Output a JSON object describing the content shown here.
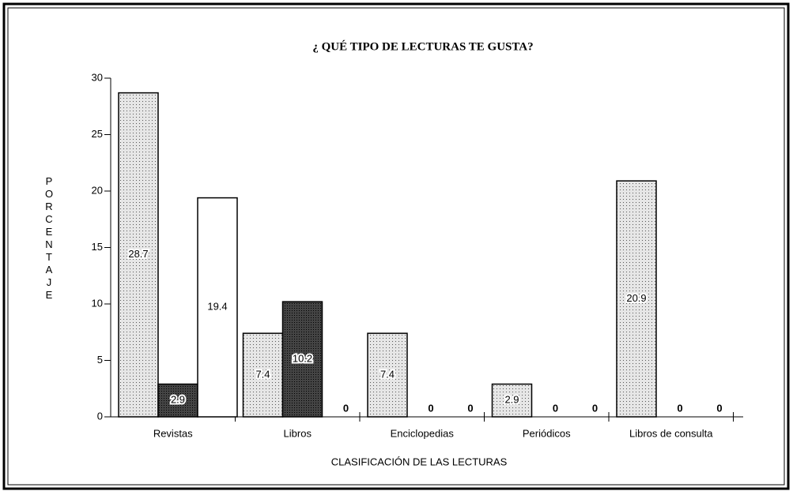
{
  "chart_data": {
    "type": "bar",
    "title": "¿ QUÉ TIPO DE LECTURAS TE GUSTA?",
    "x_label": "CLASIFICACIÓN DE LAS LECTURAS",
    "y_label": "PORCENTAJE",
    "categories": [
      "Revistas",
      "Libros",
      "Enciclopedias",
      "Periódicos",
      "Libros de consulta"
    ],
    "series": [
      {
        "color": "#e6e6e6",
        "values": [
          28.7,
          7.4,
          7.4,
          2.9,
          20.9
        ]
      },
      {
        "color": "#444444",
        "values": [
          2.9,
          10.2,
          0,
          0,
          0
        ]
      },
      {
        "color": "#ffffff",
        "values": [
          19.4,
          0,
          0,
          0,
          0
        ]
      }
    ],
    "ylim": [
      0,
      30
    ],
    "yticks": [
      0,
      5,
      10,
      15,
      20,
      25,
      30
    ]
  }
}
